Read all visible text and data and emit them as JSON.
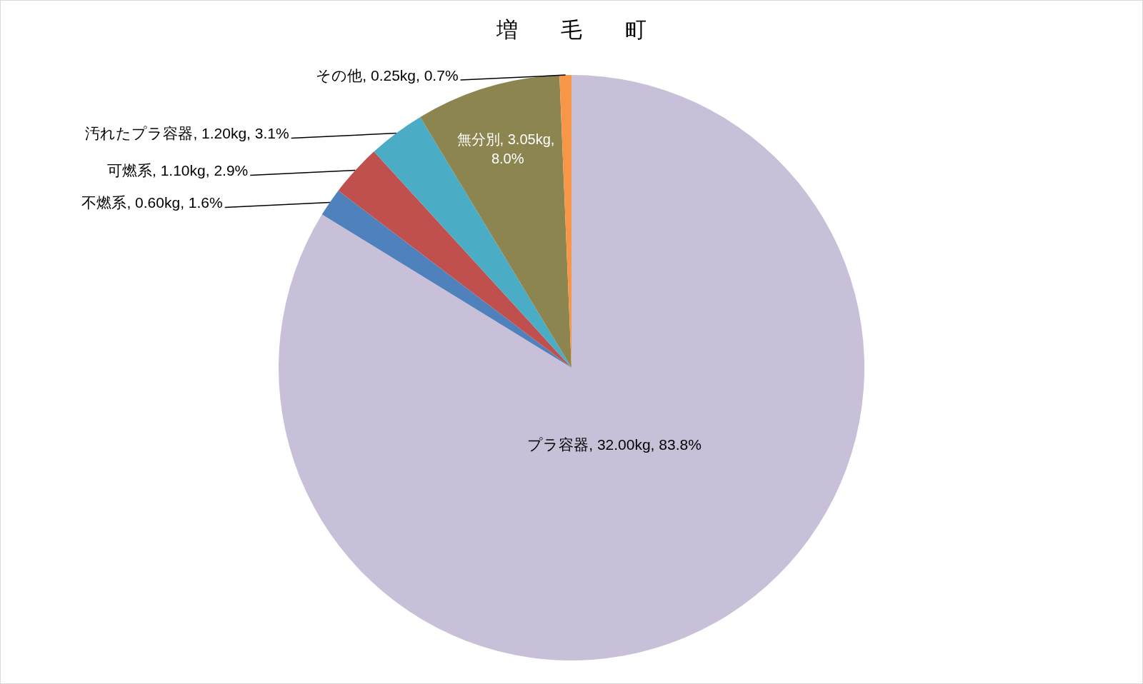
{
  "chart_data": {
    "type": "pie",
    "title": "増　　毛　　町",
    "categories": [
      "プラ容器",
      "不燃系",
      "可燃系",
      "汚れたプラ容器",
      "無分別",
      "その他"
    ],
    "values": [
      32.0,
      0.6,
      1.1,
      1.2,
      3.05,
      0.25
    ],
    "colors": [
      "#c8bfd8",
      "#4f81bd",
      "#c0504d",
      "#4bacc6",
      "#8c8550",
      "#f79646"
    ],
    "value_labels": [
      "32.00kg, 83.8%",
      "0.60kg, 1.6%",
      "1.10kg, 2.9%",
      "1.20kg, 3.1%",
      "3.05kg, 8.0%",
      "0.25kg, 0.7%"
    ]
  }
}
